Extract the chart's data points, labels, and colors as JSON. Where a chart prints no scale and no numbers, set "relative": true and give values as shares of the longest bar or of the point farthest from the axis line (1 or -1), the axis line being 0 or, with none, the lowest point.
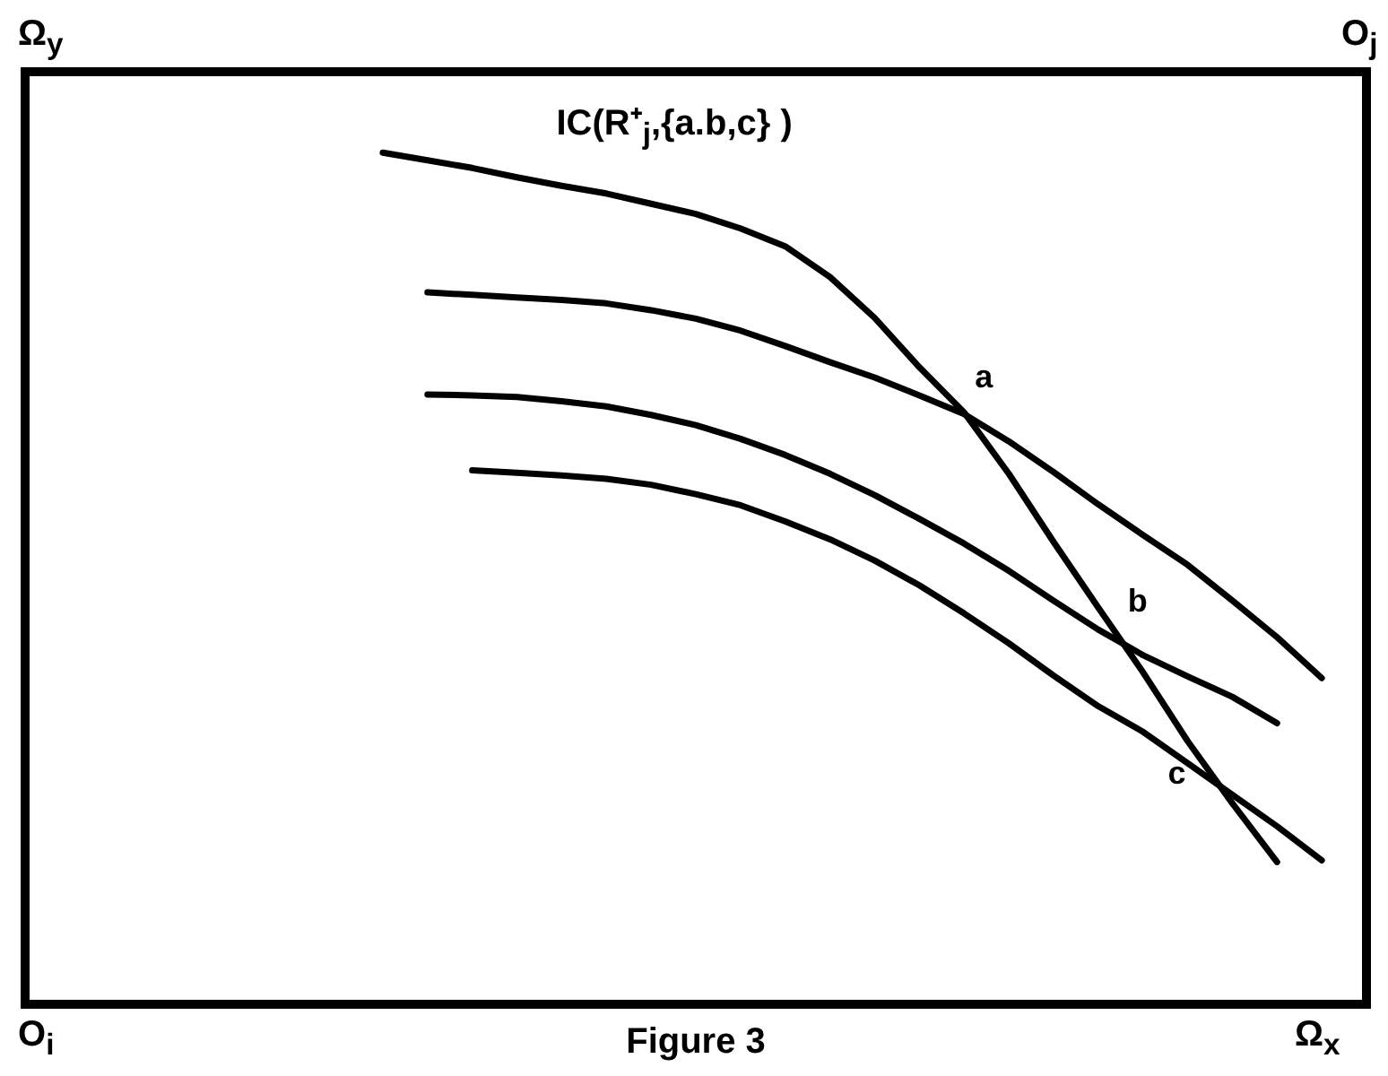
{
  "chart_data": {
    "type": "line",
    "relative": true,
    "legend": false,
    "marker": "none",
    "line_style": "solid",
    "categories": [
      null,
      null,
      null,
      null,
      null,
      null,
      null,
      null,
      null,
      null,
      null,
      null,
      null,
      null,
      null,
      null,
      null,
      null,
      null,
      null,
      null,
      null,
      null,
      null,
      null,
      null,
      null,
      null,
      null,
      null,
      null
    ],
    "series": [
      {
        "color": "#000000",
        "values": [
          null,
          null,
          null,
          null,
          null,
          null,
          null,
          null,
          1.0,
          0.991,
          0.982,
          0.971,
          0.961,
          0.952,
          0.94,
          0.928,
          0.911,
          0.89,
          0.854,
          0.806,
          0.748,
          0.695,
          0.623,
          0.543,
          0.466,
          0.39,
          0.309,
          0.236,
          0.167,
          null,
          null
        ]
      },
      {
        "color": "#000000",
        "values": [
          null,
          null,
          null,
          null,
          null,
          null,
          null,
          null,
          null,
          0.836,
          0.833,
          0.83,
          0.827,
          0.823,
          0.815,
          0.805,
          0.791,
          0.773,
          0.754,
          0.736,
          0.715,
          0.693,
          0.661,
          0.625,
          0.587,
          0.551,
          0.516,
          0.474,
          0.431,
          0.383,
          null
        ]
      },
      {
        "color": "#000000",
        "values": [
          null,
          null,
          null,
          null,
          null,
          null,
          null,
          null,
          null,
          0.716,
          0.715,
          0.713,
          0.708,
          0.702,
          0.692,
          0.68,
          0.664,
          0.645,
          0.623,
          0.598,
          0.57,
          0.541,
          0.509,
          0.474,
          0.44,
          0.41,
          0.385,
          0.361,
          0.33,
          null,
          null
        ]
      },
      {
        "color": "#000000",
        "values": [
          null,
          null,
          null,
          null,
          null,
          null,
          null,
          null,
          null,
          null,
          0.627,
          0.624,
          0.621,
          0.617,
          0.61,
          0.599,
          0.586,
          0.567,
          0.546,
          0.521,
          0.492,
          0.459,
          0.424,
          0.386,
          0.35,
          0.32,
          0.283,
          0.246,
          0.209,
          0.169,
          null
        ]
      }
    ],
    "annotations": [
      "IC(R⁺$_{j}$,{a.b,c} )",
      "a",
      "b",
      "c",
      "Ω$_{y}$",
      "O$_{j}$",
      "O$_{i}$",
      "Ω$_{x}$",
      "Figure 3"
    ]
  }
}
